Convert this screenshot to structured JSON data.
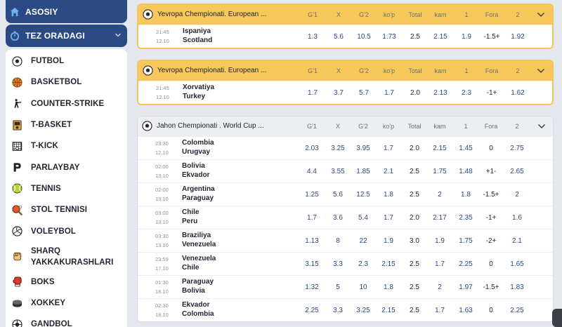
{
  "sidebar": {
    "home_label": "ASOSIY",
    "quick_label": "TEZ ORADAGI",
    "items": [
      {
        "label": "FUTBOL",
        "icon": "soccer-ball-icon"
      },
      {
        "label": "BASKETBOL",
        "icon": "basketball-icon"
      },
      {
        "label": "COUNTER-STRIKE",
        "icon": "shooter-icon"
      },
      {
        "label": "T-BASKET",
        "icon": "arcade-icon"
      },
      {
        "label": "T-KICK",
        "icon": "goal-net-icon"
      },
      {
        "label": "PARLAYBAY",
        "icon": "parlay-p-icon"
      },
      {
        "label": "TENNIS",
        "icon": "tennis-ball-icon"
      },
      {
        "label": "STOL TENNISI",
        "icon": "ping-pong-icon"
      },
      {
        "label": "VOLEYBOL",
        "icon": "volleyball-icon"
      },
      {
        "label": "SHARQ YAKKAKURASHLARI",
        "icon": "fist-icon"
      },
      {
        "label": "BOKS",
        "icon": "boxing-glove-icon"
      },
      {
        "label": "XOKKEY",
        "icon": "hockey-puck-icon"
      },
      {
        "label": "GANDBOL",
        "icon": "handball-icon"
      }
    ]
  },
  "columns": [
    "G'1",
    "X",
    "G'2",
    "ko'p",
    "Total",
    "kam",
    "1",
    "Fora",
    "2"
  ],
  "leagues": [
    {
      "name": "Yevropa Chempionati. European ...",
      "matches": [
        {
          "time": "21:45",
          "date": "12.10",
          "home": "Ispaniya",
          "away": "Scotland",
          "odds": [
            "1.3",
            "5.6",
            "10.5",
            "1.73",
            "2.5",
            "2.15",
            "1.9",
            "-1.5+",
            "1.92"
          ]
        }
      ]
    },
    {
      "name": "Yevropa Chempionati. European ...",
      "matches": [
        {
          "time": "21:45",
          "date": "12.10",
          "home": "Xorvatiya",
          "away": "Turkey",
          "odds": [
            "1.7",
            "3.7",
            "5.7",
            "1.7",
            "2.0",
            "2.13",
            "2.3",
            "-1+",
            "1.62"
          ]
        }
      ]
    },
    {
      "name": "Jahon Chempionati . World Cup ...",
      "matches": [
        {
          "time": "23:30",
          "date": "12.10",
          "home": "Colombia",
          "away": "Urugvay",
          "odds": [
            "2.03",
            "3.25",
            "3.95",
            "1.7",
            "2.0",
            "2.15",
            "1.45",
            "0",
            "2.75"
          ]
        },
        {
          "time": "02:00",
          "date": "13.10",
          "home": "Bolivia",
          "away": "Ekvador",
          "odds": [
            "4.4",
            "3.55",
            "1.85",
            "2.1",
            "2.5",
            "1.75",
            "1.48",
            "+1-",
            "2.65"
          ]
        },
        {
          "time": "02:00",
          "date": "13.10",
          "home": "Argentina",
          "away": "Paraguay",
          "odds": [
            "1.25",
            "5.6",
            "12.5",
            "1.8",
            "2.5",
            "2",
            "1.8",
            "-1.5+",
            "2"
          ]
        },
        {
          "time": "03:00",
          "date": "13.10",
          "home": "Chile",
          "away": "Peru",
          "odds": [
            "1.7",
            "3.6",
            "5.4",
            "1.7",
            "2.0",
            "2.17",
            "2.35",
            "-1+",
            "1.6"
          ]
        },
        {
          "time": "03:30",
          "date": "13.10",
          "home": "Braziliya",
          "away": "Venezuela",
          "odds": [
            "1.13",
            "8",
            "22",
            "1.9",
            "3.0",
            "1.9",
            "1.75",
            "-2+",
            "2.1"
          ]
        },
        {
          "time": "23:59",
          "date": "17.10",
          "home": "Venezuela",
          "away": "Chile",
          "odds": [
            "3.15",
            "3.3",
            "2.3",
            "2.15",
            "2.5",
            "1.7",
            "2.25",
            "0",
            "1.65"
          ]
        },
        {
          "time": "01:30",
          "date": "18.10",
          "home": "Paraguay",
          "away": "Bolivia",
          "odds": [
            "1.32",
            "5",
            "10",
            "1.8",
            "2.5",
            "2",
            "1.97",
            "-1.5+",
            "1.83"
          ]
        },
        {
          "time": "02:30",
          "date": "18.10",
          "home": "Ekvador",
          "away": "Colombia",
          "odds": [
            "2.25",
            "3.3",
            "3.25",
            "2.15",
            "2.5",
            "1.7",
            "1.63",
            "0",
            "2.25"
          ]
        }
      ]
    }
  ]
}
